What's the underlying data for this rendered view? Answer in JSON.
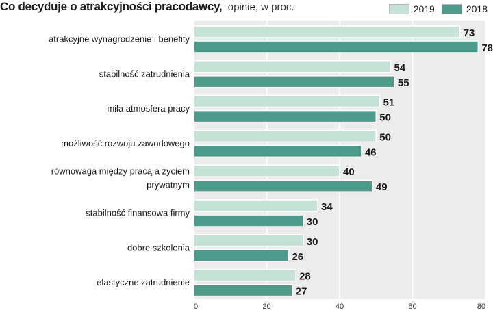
{
  "chart_data": {
    "type": "bar",
    "orientation": "horizontal",
    "title": "Co decyduje o atrakcyjności pracodawcy,",
    "subtitle": "opinie, w proc.",
    "xlim": [
      0,
      80
    ],
    "ticks": [
      "0",
      "20",
      "40",
      "60",
      "80"
    ],
    "grid": true,
    "legend_position": "top-right",
    "categories": [
      [
        "atrakcyjne wynagrodzenie i benefity"
      ],
      [
        "stabilność zatrudnienia"
      ],
      [
        "miła atmosfera pracy"
      ],
      [
        "możliwość rozwoju zawodowego"
      ],
      [
        "równowaga między pracą a życiem",
        "prywatnym"
      ],
      [
        "stabilność finansowa firmy"
      ],
      [
        "dobre szkolenia"
      ],
      [
        "elastyczne zatrudnienie"
      ]
    ],
    "series": [
      {
        "name": "2019",
        "color": "#c6e1d6",
        "values": [
          73,
          54,
          51,
          50,
          40,
          34,
          30,
          28
        ]
      },
      {
        "name": "2018",
        "color": "#4f9b8b",
        "values": [
          78,
          55,
          50,
          46,
          49,
          30,
          26,
          27
        ]
      }
    ]
  }
}
